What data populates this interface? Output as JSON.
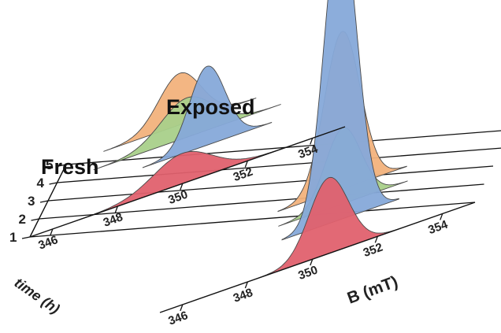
{
  "chart_data": {
    "type": "area",
    "view": "3d-waterfall",
    "colors": {
      "orange": "#f2b27c",
      "green": "#a9d08a",
      "blue": "#86a9d9",
      "red": "#e0616e"
    },
    "axes": {
      "x": {
        "label": "B (mT)",
        "ticks": [
          346,
          348,
          350,
          352,
          354
        ],
        "range": [
          345.3,
          355
        ]
      },
      "y": {
        "label": "time (h)",
        "ticks": [
          1,
          2,
          3,
          4,
          5
        ]
      },
      "z": {
        "label": ""
      }
    },
    "groups": [
      {
        "label": "Fresh",
        "series": [
          {
            "time": 1,
            "color": "red",
            "center": 350.0,
            "width": 0.9,
            "height": 0.1
          },
          {
            "time": 3,
            "color": "blue",
            "center": 350.2,
            "width": 0.55,
            "height": 0.26
          },
          {
            "time": 4,
            "color": "green",
            "center": 349.3,
            "width": 0.8,
            "height": 0.13
          },
          {
            "time": 5,
            "color": "orange",
            "center": 348.8,
            "width": 0.65,
            "height": 0.17
          }
        ]
      },
      {
        "label": "Exposed",
        "series": [
          {
            "time": 1,
            "color": "red",
            "center": 350.5,
            "width": 0.6,
            "height": 0.25
          },
          {
            "time": 3,
            "color": "blue",
            "center": 350.3,
            "width": 0.5,
            "height": 1.0
          },
          {
            "time": 4,
            "color": "green",
            "center": 350.1,
            "width": 0.55,
            "height": 0.25
          },
          {
            "time": 5,
            "color": "orange",
            "center": 349.8,
            "width": 0.55,
            "height": 0.52
          }
        ]
      }
    ]
  }
}
